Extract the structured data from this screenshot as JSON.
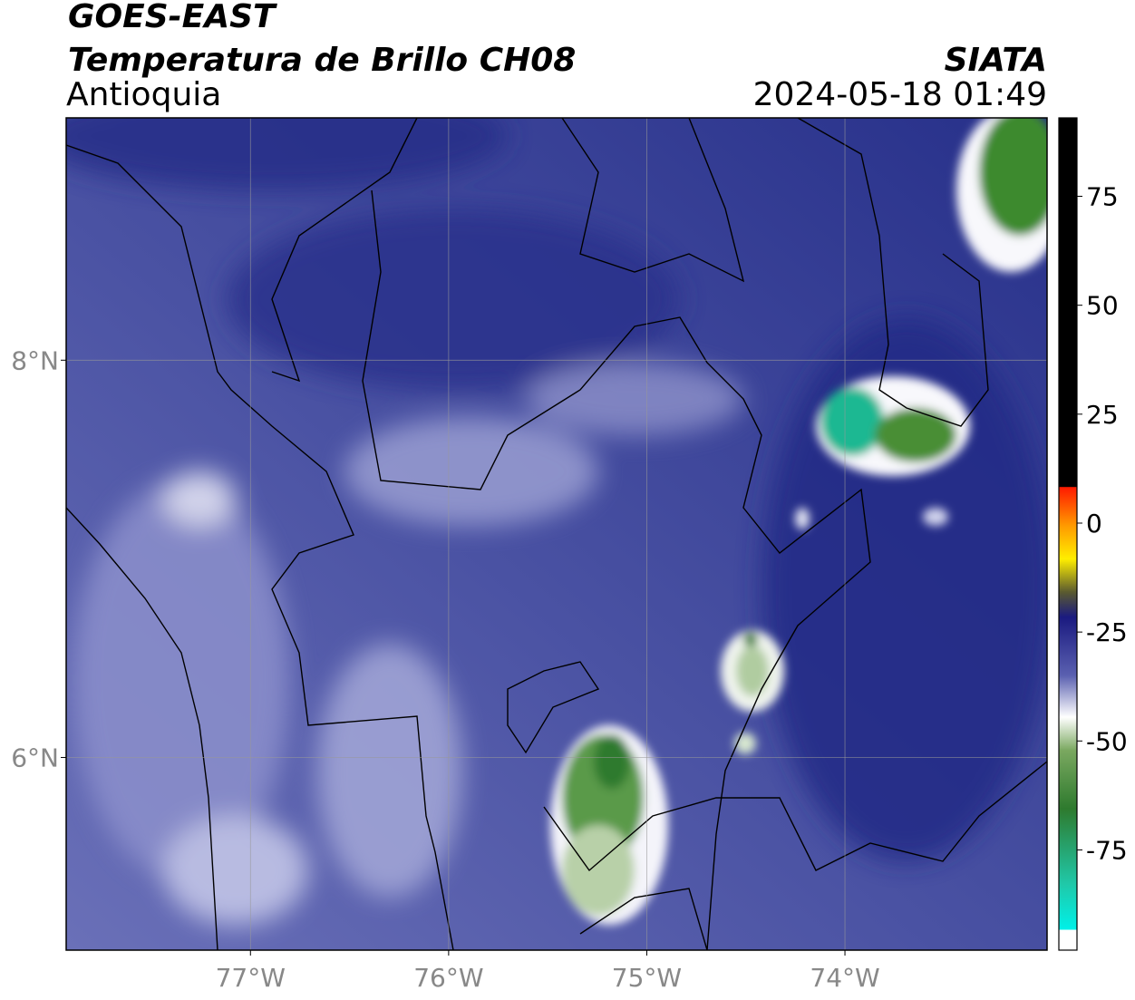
{
  "header": {
    "title": "GOES-EAST",
    "subtitle": "Temperatura de Brillo CH08",
    "region": "Antioquia",
    "source": "SIATA",
    "datetime": "2024-05-18 01:49"
  },
  "map": {
    "xlim": [
      -77.93,
      -72.98
    ],
    "ylim": [
      5.03,
      9.22
    ],
    "xticks": [
      {
        "value": -77,
        "label": "77°W"
      },
      {
        "value": -76,
        "label": "76°W"
      },
      {
        "value": -75,
        "label": "75°W"
      },
      {
        "value": -74,
        "label": "74°W"
      }
    ],
    "yticks": [
      {
        "value": 8,
        "label": "8°N"
      },
      {
        "value": 6,
        "label": "6°N"
      }
    ],
    "grid": true
  },
  "colorbar": {
    "lim": [
      -98,
      93
    ],
    "ticks": [
      75,
      50,
      25,
      0,
      -25,
      -50,
      -75
    ]
  }
}
